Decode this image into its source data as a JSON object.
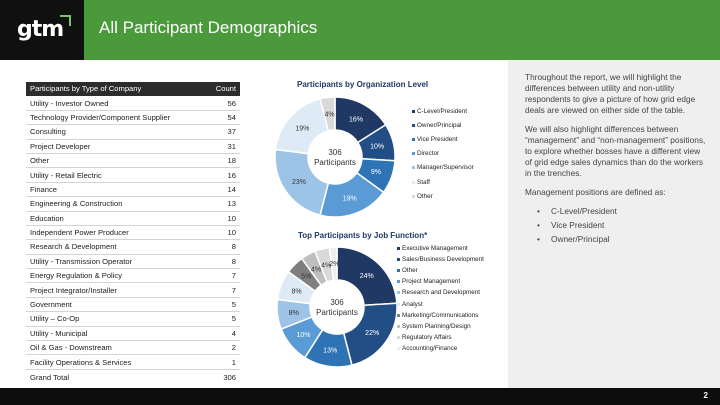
{
  "header": {
    "logo_text": "gtm",
    "title": "All Participant Demographics"
  },
  "table": {
    "header": {
      "label": "Participants by Type of Company",
      "count": "Count"
    },
    "rows": [
      {
        "label": "Utility - Investor Owned",
        "count": "56"
      },
      {
        "label": "Technology Provider/Component Supplier",
        "count": "54"
      },
      {
        "label": "Consulting",
        "count": "37"
      },
      {
        "label": "Project Developer",
        "count": "31"
      },
      {
        "label": "Other",
        "count": "18"
      },
      {
        "label": "Utility - Retail Electric",
        "count": "16"
      },
      {
        "label": "Finance",
        "count": "14"
      },
      {
        "label": "Engineering & Construction",
        "count": "13"
      },
      {
        "label": "Education",
        "count": "10"
      },
      {
        "label": "Independent Power Producer",
        "count": "10"
      },
      {
        "label": "Research & Development",
        "count": "8"
      },
      {
        "label": "Utility - Transmission Operator",
        "count": "8"
      },
      {
        "label": "Energy Regulation & Policy",
        "count": "7"
      },
      {
        "label": "Project Integrator/Installer",
        "count": "7"
      },
      {
        "label": "Government",
        "count": "5"
      },
      {
        "label": "Utility – Co-Op",
        "count": "5"
      },
      {
        "label": "Utility - Municipal",
        "count": "4"
      },
      {
        "label": "Oil & Gas - Downstream",
        "count": "2"
      },
      {
        "label": "Facility Operations & Services",
        "count": "1"
      }
    ],
    "total": {
      "label": "Grand Total",
      "count": "306"
    }
  },
  "chart_data": [
    {
      "type": "pie",
      "title": "Participants by Organization Level",
      "center_label": [
        "306",
        "Participants"
      ],
      "categories": [
        "C-Level/President",
        "Owner/Principal",
        "Vice President",
        "Director",
        "Manager/Supervisor",
        "Staff",
        "Other"
      ],
      "values": [
        16,
        10,
        9,
        19,
        23,
        19,
        4
      ],
      "value_labels": [
        "16%",
        "10%",
        "9%",
        "19%",
        "23%",
        "19%",
        "4%"
      ],
      "colors": [
        "#1f3864",
        "#234e85",
        "#2e74b5",
        "#5b9bd5",
        "#9dc3e6",
        "#deebf7",
        "#d9d9d9"
      ],
      "legend_position": "right"
    },
    {
      "type": "pie",
      "title": "Top Participants by Job Function*",
      "center_label": [
        "306",
        "Participants"
      ],
      "categories": [
        "Executive Management",
        "Sales/Business Development",
        "Other",
        "Project Management",
        "Research and Development",
        "Analyst",
        "Marketing/Communications",
        "System Planning/Design",
        "Regulatory Affairs",
        "Accounting/Finance"
      ],
      "values": [
        24,
        22,
        13,
        10,
        8,
        8,
        5,
        4,
        4,
        2
      ],
      "value_labels": [
        "24%",
        "22%",
        "13%",
        "10%",
        "8%",
        "8%",
        "5%",
        "4%",
        "4%",
        "2%"
      ],
      "colors": [
        "#1f3864",
        "#234e85",
        "#2e74b5",
        "#5b9bd5",
        "#9dc3e6",
        "#deebf7",
        "#7f7f7f",
        "#bfbfbf",
        "#d9d9d9",
        "#ededed"
      ],
      "legend_position": "right"
    }
  ],
  "side_panel": {
    "paragraphs": [
      "Throughout the report, we will highlight the differences between utility and non-utility respondents to give a picture of how grid edge deals are viewed on either side of the table.",
      "We will also highlight differences between “management” and “non-management” positions, to explore whether bosses have a different view of grid edge sales dynamics than do the workers in the trenches.",
      "Management positions are defined as:"
    ],
    "bullets": [
      "C-Level/President",
      "Vice President",
      "Owner/Principal"
    ]
  },
  "footer": {
    "page_number": "2"
  }
}
